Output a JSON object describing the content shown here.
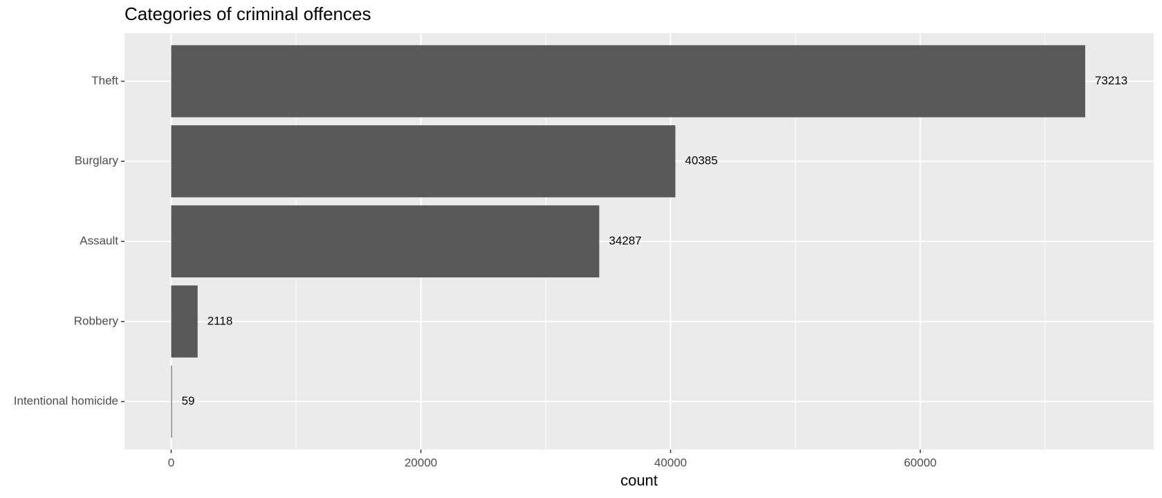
{
  "chart_data": {
    "type": "bar",
    "orientation": "horizontal",
    "title": "Categories of criminal offences",
    "x_label": "count",
    "categories": [
      "Theft",
      "Burglary",
      "Assault",
      "Robbery",
      "Intentional homicide"
    ],
    "values": [
      73213,
      40385,
      34287,
      2118,
      59
    ],
    "color": "#595959",
    "xlim": [
      -3740,
      78700
    ],
    "xticks": [
      0,
      20000,
      40000,
      60000
    ],
    "x_minor_grid": [
      10000,
      30000,
      50000,
      70000
    ],
    "grid": true,
    "value_labels_shown": true
  }
}
